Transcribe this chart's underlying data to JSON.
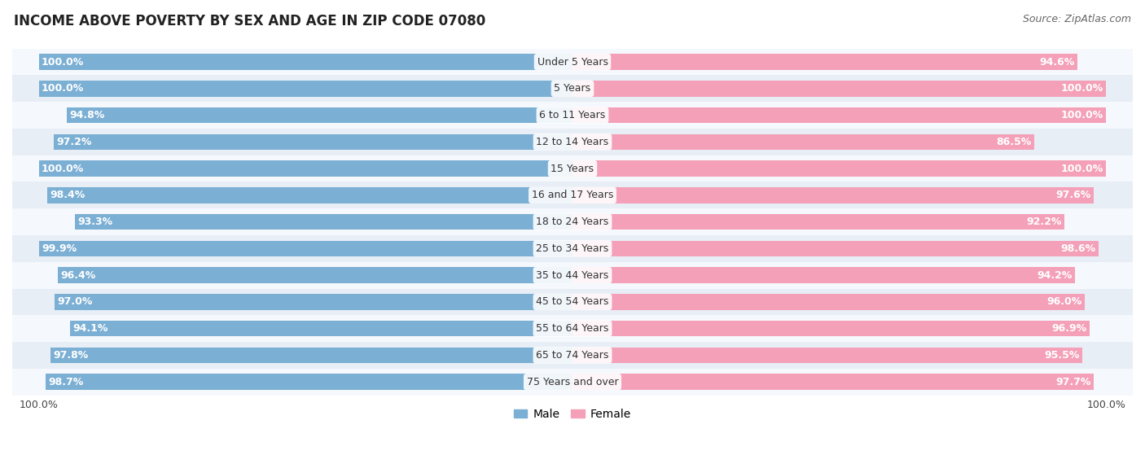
{
  "title": "INCOME ABOVE POVERTY BY SEX AND AGE IN ZIP CODE 07080",
  "source": "Source: ZipAtlas.com",
  "categories": [
    "Under 5 Years",
    "5 Years",
    "6 to 11 Years",
    "12 to 14 Years",
    "15 Years",
    "16 and 17 Years",
    "18 to 24 Years",
    "25 to 34 Years",
    "35 to 44 Years",
    "45 to 54 Years",
    "55 to 64 Years",
    "65 to 74 Years",
    "75 Years and over"
  ],
  "male_values": [
    100.0,
    100.0,
    94.8,
    97.2,
    100.0,
    98.4,
    93.3,
    99.9,
    96.4,
    97.0,
    94.1,
    97.8,
    98.7
  ],
  "female_values": [
    94.6,
    100.0,
    100.0,
    86.5,
    100.0,
    97.6,
    92.2,
    98.6,
    94.2,
    96.0,
    96.9,
    95.5,
    97.7
  ],
  "male_color": "#7bafd4",
  "female_color": "#f4a0b8",
  "male_label": "Male",
  "female_label": "Female",
  "bar_row_bg_odd": "#e8eef6",
  "bar_row_bg_even": "#f5f8fc",
  "title_fontsize": 12,
  "source_fontsize": 9,
  "label_fontsize": 9,
  "category_fontsize": 9,
  "legend_fontsize": 10
}
